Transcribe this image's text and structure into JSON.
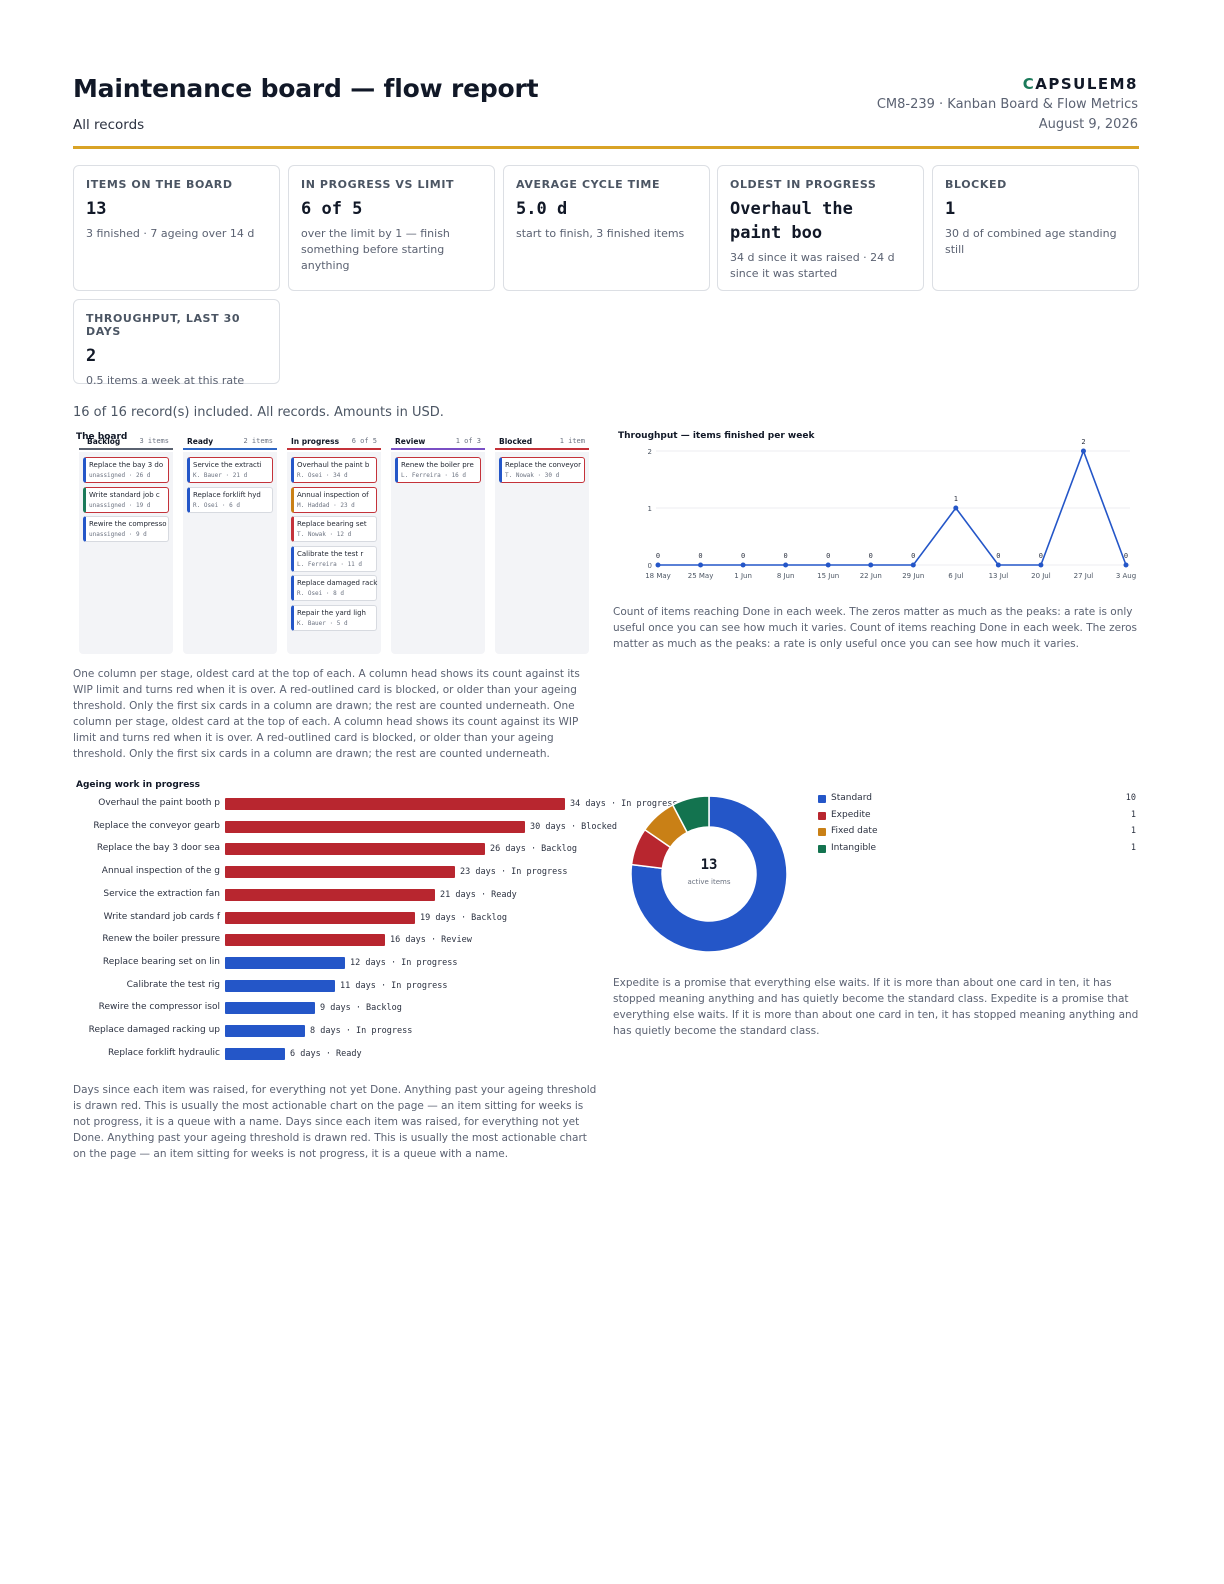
{
  "header": {
    "title": "Maintenance board — flow report",
    "subtitle": "All records",
    "brand_c": "C",
    "brand_rest": "APSULEM8",
    "doc_id": "CM8-239 · Kanban Board & Flow Metrics",
    "date": "August 9, 2026"
  },
  "kpis": [
    {
      "label": "Items on the board",
      "value": "13",
      "note": "3 finished · 7 ageing over 14 d"
    },
    {
      "label": "In progress vs limit",
      "value": "6 of 5",
      "note": "over the limit by 1 — finish something before starting anything"
    },
    {
      "label": "Average cycle time",
      "value": "5.0 d",
      "note": "start to finish, 3 finished items"
    },
    {
      "label": "Oldest in progress",
      "value": "Overhaul the paint boo",
      "note": "34 d since it was raised · 24 d since it was started"
    },
    {
      "label": "Blocked",
      "value": "1",
      "note": "30 d of combined age standing still"
    },
    {
      "label": "Throughput, last 30 days",
      "value": "2",
      "note": "0.5 items a week at this rate"
    }
  ],
  "records_line": "16 of 16 record(s) included. All records. Amounts in USD.",
  "board": {
    "title": "The board",
    "columns": [
      {
        "name": "Backlog",
        "count": "3 items",
        "color": "#5a6270",
        "cards": [
          {
            "title": "Replace the bay 3 do",
            "meta": "unassigned · 26 d",
            "flag": true,
            "accent": "#2456c8"
          },
          {
            "title": "Write standard job c",
            "meta": "unassigned · 19 d",
            "flag": true,
            "accent": "#1b7a5a"
          },
          {
            "title": "Rewire the compresso",
            "meta": "unassigned · 9 d",
            "flag": false,
            "accent": "#2456c8"
          }
        ]
      },
      {
        "name": "Ready",
        "count": "2 items",
        "color": "#2f67c4",
        "cards": [
          {
            "title": "Service the extracti",
            "meta": "K. Bauer · 21 d",
            "flag": true,
            "accent": "#2456c8"
          },
          {
            "title": "Replace forklift hyd",
            "meta": "R. Osei · 6 d",
            "flag": false,
            "accent": "#2456c8"
          }
        ]
      },
      {
        "name": "In progress",
        "count": "6 of 5",
        "color": "#c4323a",
        "cards": [
          {
            "title": "Overhaul the paint b",
            "meta": "R. Osei · 34 d",
            "flag": true,
            "accent": "#2456c8"
          },
          {
            "title": "Annual inspection of",
            "meta": "M. Haddad · 23 d",
            "flag": true,
            "accent": "#c98016"
          },
          {
            "title": "Replace bearing set",
            "meta": "T. Nowak · 12 d",
            "flag": false,
            "accent": "#c4323a"
          },
          {
            "title": "Calibrate the test r",
            "meta": "L. Ferreira · 11 d",
            "flag": false,
            "accent": "#2456c8"
          },
          {
            "title": "Replace damaged rack",
            "meta": "R. Osei · 8 d",
            "flag": false,
            "accent": "#2456c8"
          },
          {
            "title": "Repair the yard ligh",
            "meta": "K. Bauer · 5 d",
            "flag": false,
            "accent": "#2456c8"
          }
        ]
      },
      {
        "name": "Review",
        "count": "1 of 3",
        "color": "#7a4fc4",
        "cards": [
          {
            "title": "Renew the boiler pre",
            "meta": "L. Ferreira · 16 d",
            "flag": true,
            "accent": "#2456c8"
          }
        ]
      },
      {
        "name": "Blocked",
        "count": "1 item",
        "color": "#c4323a",
        "cards": [
          {
            "title": "Replace the conveyor",
            "meta": "T. Nowak · 30 d",
            "flag": true,
            "accent": "#2456c8"
          }
        ]
      }
    ],
    "caption": "One column per stage, oldest card at the top of each. A column head shows its count against its WIP limit and turns red when it is over. A red-outlined card is blocked, or older than your ageing threshold. Only the first six cards in a column are drawn; the rest are counted underneath. One column per stage, oldest card at the top of each. A column head shows its count against its WIP limit and turns red when it is over. A red-outlined card is blocked, or older than your ageing threshold. Only the first six cards in a column are drawn; the rest are counted underneath."
  },
  "throughput_caption": "Count of items reaching Done in each week. The zeros matter as much as the peaks: a rate is only useful once you can see how much it varies. Count of items reaching Done in each week. The zeros matter as much as the peaks: a rate is only useful once you can see how much it varies.",
  "ageing_caption": "Days since each item was raised, for everything not yet Done. Anything past your ageing threshold is drawn red. This is usually the most actionable chart on the page — an item sitting for weeks is not progress, it is a queue with a name. Days since each item was raised, for everything not yet Done. Anything past your ageing threshold is drawn red. This is usually the most actionable chart on the page — an item sitting for weeks is not progress, it is a queue with a name.",
  "donut": {
    "center_value": "13",
    "center_label": "active items",
    "caption": "Expedite is a promise that everything else waits. If it is more than about one card in ten, it has stopped meaning anything and has quietly become the standard class. Expedite is a promise that everything else waits. If it is more than about one card in ten, it has stopped meaning anything and has quietly become the standard class."
  },
  "chart_data": [
    {
      "type": "line",
      "title": "Throughput — items finished per week",
      "x": [
        "18 May",
        "25 May",
        "1 Jun",
        "8 Jun",
        "15 Jun",
        "22 Jun",
        "29 Jun",
        "6 Jul",
        "13 Jul",
        "20 Jul",
        "27 Jul",
        "3 Aug"
      ],
      "series": [
        {
          "values": [
            0,
            0,
            0,
            0,
            0,
            0,
            0,
            1,
            0,
            0,
            2,
            0
          ]
        }
      ],
      "ylim": [
        0,
        2
      ],
      "yticks": [
        "0",
        "1",
        "2"
      ],
      "color": "#2456c8",
      "grid": true
    },
    {
      "type": "bar",
      "orientation": "horizontal",
      "title": "Ageing work in progress",
      "categories": [
        "Overhaul the paint booth p",
        "Replace the conveyor gearb",
        "Replace the bay 3 door sea",
        "Annual inspection of the g",
        "Service the extraction fan",
        "Write standard job cards f",
        "Renew the boiler pressure",
        "Replace bearing set on lin",
        "Calibrate the test rig",
        "Rewire the compressor isol",
        "Replace damaged racking up",
        "Replace forklift hydraulic"
      ],
      "values": [
        34,
        30,
        26,
        23,
        21,
        19,
        16,
        12,
        11,
        9,
        8,
        6
      ],
      "labels": [
        "34 days · In progress",
        "30 days · Blocked",
        "26 days · Backlog",
        "23 days · In progress",
        "21 days · Ready",
        "19 days · Backlog",
        "16 days · Review",
        "12 days · In progress",
        "11 days · In progress",
        "9 days · Backlog",
        "8 days · In progress",
        "6 days · Ready"
      ],
      "colors": [
        "#b8262f",
        "#b8262f",
        "#b8262f",
        "#b8262f",
        "#b8262f",
        "#b8262f",
        "#b8262f",
        "#2456c8",
        "#2456c8",
        "#2456c8",
        "#2456c8",
        "#2456c8"
      ]
    },
    {
      "type": "pie",
      "style": "donut",
      "categories": [
        "Standard",
        "Expedite",
        "Fixed date",
        "Intangible"
      ],
      "values": [
        10,
        1,
        1,
        1
      ],
      "colors": [
        "#2456c8",
        "#b8262f",
        "#c98016",
        "#13734f"
      ]
    }
  ]
}
